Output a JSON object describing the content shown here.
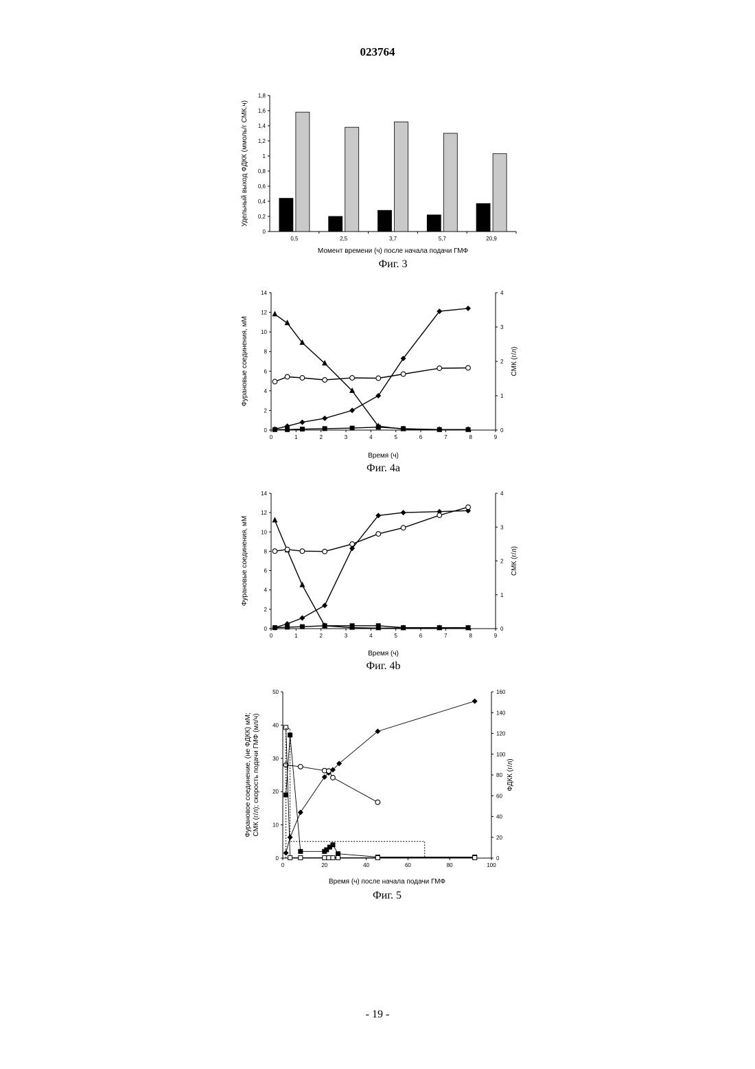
{
  "header": {
    "doc_number": "023764"
  },
  "footer": {
    "page_label": "- 19 -"
  },
  "chart_data": [
    {
      "type": "bar",
      "caption": "Фиг. 3",
      "ylabel": "Удельный выход ФДКК (ммоль/г СМК.ч)",
      "xlabel": "Момент времени (ч) после начала подачи ГМФ",
      "ylim": [
        0,
        1.8
      ],
      "yticks": [
        "0",
        "0,2",
        "0,4",
        "0,6",
        "0,8",
        "1",
        "1,2",
        "1,4",
        "1,6",
        "1,8"
      ],
      "categories": [
        "0,5",
        "2,5",
        "3,7",
        "5,7",
        "20,9"
      ],
      "series": [
        {
          "values": [
            0.44,
            0.2,
            0.28,
            0.22,
            0.37
          ],
          "color": "#000000"
        },
        {
          "values": [
            1.58,
            1.38,
            1.45,
            1.3,
            1.03
          ],
          "color": "#c9c9c9"
        }
      ]
    },
    {
      "type": "line",
      "caption": "Фиг. 4а",
      "xlabel": "Время (ч)",
      "ylabel": "Фурановые соединения, мМ",
      "y2label": "СМК (г/л)",
      "xlim": [
        0,
        9
      ],
      "ylim": [
        0,
        14
      ],
      "y2lim": [
        0,
        4
      ],
      "xticks": [
        "0",
        "1",
        "2",
        "3",
        "4",
        "5",
        "6",
        "7",
        "8",
        "9"
      ],
      "yticks": [
        "0",
        "2",
        "4",
        "6",
        "8",
        "10",
        "12",
        "14"
      ],
      "y2ticks": [
        "0",
        "1",
        "2",
        "3",
        "4"
      ],
      "series": [
        {
          "marker": "triangle",
          "axis": "left",
          "x": [
            0.15,
            0.65,
            1.25,
            2.15,
            3.25,
            4.3,
            5.3,
            6.75,
            7.9
          ],
          "y": [
            11.8,
            10.9,
            8.9,
            6.8,
            4.0,
            0.4,
            0.1,
            0.05,
            0.05
          ]
        },
        {
          "marker": "diamond",
          "axis": "left",
          "x": [
            0.15,
            0.65,
            1.25,
            2.15,
            3.25,
            4.3,
            5.3,
            6.75,
            7.9
          ],
          "y": [
            0.1,
            0.4,
            0.8,
            1.2,
            2.0,
            3.5,
            7.3,
            12.1,
            12.4
          ]
        },
        {
          "marker": "circle",
          "axis": "right",
          "x": [
            0.15,
            0.65,
            1.25,
            2.15,
            3.25,
            4.3,
            5.3,
            6.75,
            7.9
          ],
          "y": [
            1.41,
            1.55,
            1.52,
            1.46,
            1.52,
            1.51,
            1.63,
            1.8,
            1.81
          ]
        },
        {
          "marker": "square",
          "axis": "left",
          "x": [
            0.15,
            0.65,
            1.25,
            2.15,
            3.25,
            4.3,
            5.3,
            6.75,
            7.9
          ],
          "y": [
            0.05,
            0.05,
            0.1,
            0.15,
            0.2,
            0.3,
            0.15,
            0.05,
            0.05
          ]
        }
      ]
    },
    {
      "type": "line",
      "caption": "Фиг. 4b",
      "xlabel": "Время (ч)",
      "ylabel": "Фурановые соединения, мМ",
      "y2label": "СМК (г/л)",
      "xlim": [
        0,
        9
      ],
      "ylim": [
        0,
        14
      ],
      "y2lim": [
        0,
        4
      ],
      "xticks": [
        "0",
        "1",
        "2",
        "3",
        "4",
        "5",
        "6",
        "7",
        "8",
        "9"
      ],
      "yticks": [
        "0",
        "2",
        "4",
        "6",
        "8",
        "10",
        "12",
        "14"
      ],
      "y2ticks": [
        "0",
        "1",
        "2",
        "3",
        "4"
      ],
      "series": [
        {
          "marker": "triangle",
          "axis": "left",
          "x": [
            0.15,
            0.65,
            1.25,
            2.15,
            3.25,
            4.3,
            5.3,
            6.75,
            7.9
          ],
          "y": [
            11.2,
            8.1,
            4.5,
            0.3,
            0.1,
            0.05,
            0.05,
            0.05,
            0.05
          ]
        },
        {
          "marker": "diamond",
          "axis": "left",
          "x": [
            0.15,
            0.65,
            1.25,
            2.15,
            3.25,
            4.3,
            5.3,
            6.75,
            7.9
          ],
          "y": [
            0.1,
            0.5,
            1.1,
            2.4,
            8.3,
            11.7,
            12.0,
            12.1,
            12.2
          ]
        },
        {
          "marker": "circle",
          "axis": "right",
          "x": [
            0.15,
            0.65,
            1.25,
            2.15,
            3.25,
            4.3,
            5.3,
            6.75,
            7.9
          ],
          "y": [
            2.29,
            2.34,
            2.29,
            2.28,
            2.5,
            2.8,
            2.98,
            3.35,
            3.59
          ]
        },
        {
          "marker": "square",
          "axis": "left",
          "x": [
            0.15,
            0.65,
            1.25,
            2.15,
            3.25,
            4.3,
            5.3,
            6.75,
            7.9
          ],
          "y": [
            0.1,
            0.15,
            0.2,
            0.3,
            0.3,
            0.3,
            0.1,
            0.1,
            0.1
          ]
        }
      ]
    },
    {
      "type": "line",
      "caption": "Фиг. 5",
      "xlabel": "Время (ч) после начала подачи ГМФ",
      "ylabel": "Фурановое соединение, (не ФДКК) мМ;",
      "ylabel2": "СМК (г/л); скорость подачи ГМФ (мл/ч)",
      "y2label": "ФДКК (г/л)",
      "xlim": [
        0,
        100
      ],
      "ylim": [
        0,
        50
      ],
      "y2lim": [
        0,
        160
      ],
      "xticks": [
        "0",
        "20",
        "40",
        "60",
        "80",
        "100"
      ],
      "yticks": [
        "0",
        "10",
        "20",
        "30",
        "40",
        "50"
      ],
      "y2ticks": [
        "0",
        "20",
        "40",
        "60",
        "80",
        "100",
        "120",
        "140",
        "160"
      ],
      "series": [
        {
          "marker": "diamond",
          "axis": "right",
          "x": [
            1.5,
            3.5,
            8.5,
            20,
            22,
            24,
            27,
            45.5,
            92
          ],
          "y": [
            5,
            20,
            44,
            78,
            82,
            85,
            91,
            122,
            151
          ]
        },
        {
          "marker": "circle",
          "axis": "left",
          "x": [
            1.5,
            8.5,
            20,
            22,
            24,
            45.5
          ],
          "y": [
            28,
            27.5,
            26.3,
            26.2,
            24.2,
            16.8
          ]
        },
        {
          "marker": "square",
          "axis": "left",
          "x": [
            1.5,
            3.5,
            8.5,
            20,
            21,
            22.5,
            24,
            26.5,
            45.5,
            92
          ],
          "y": [
            19,
            37,
            2,
            2,
            2.5,
            3.3,
            4,
            1.3,
            0.3,
            0.3
          ]
        },
        {
          "marker": "square-open",
          "axis": "left",
          "x": [
            1.5,
            3.5,
            8.5,
            20,
            22,
            24,
            26.5,
            45.5,
            92
          ],
          "y": [
            39.3,
            0.1,
            0.1,
            0.1,
            0.1,
            0.1,
            0.1,
            0.1,
            0.1
          ]
        },
        {
          "marker": "none",
          "style": "dotted",
          "axis": "left",
          "x": [
            1.5,
            1.5,
            3.5,
            3.5,
            68,
            68
          ],
          "y": [
            0,
            39,
            39,
            5,
            5,
            0
          ]
        }
      ]
    }
  ]
}
